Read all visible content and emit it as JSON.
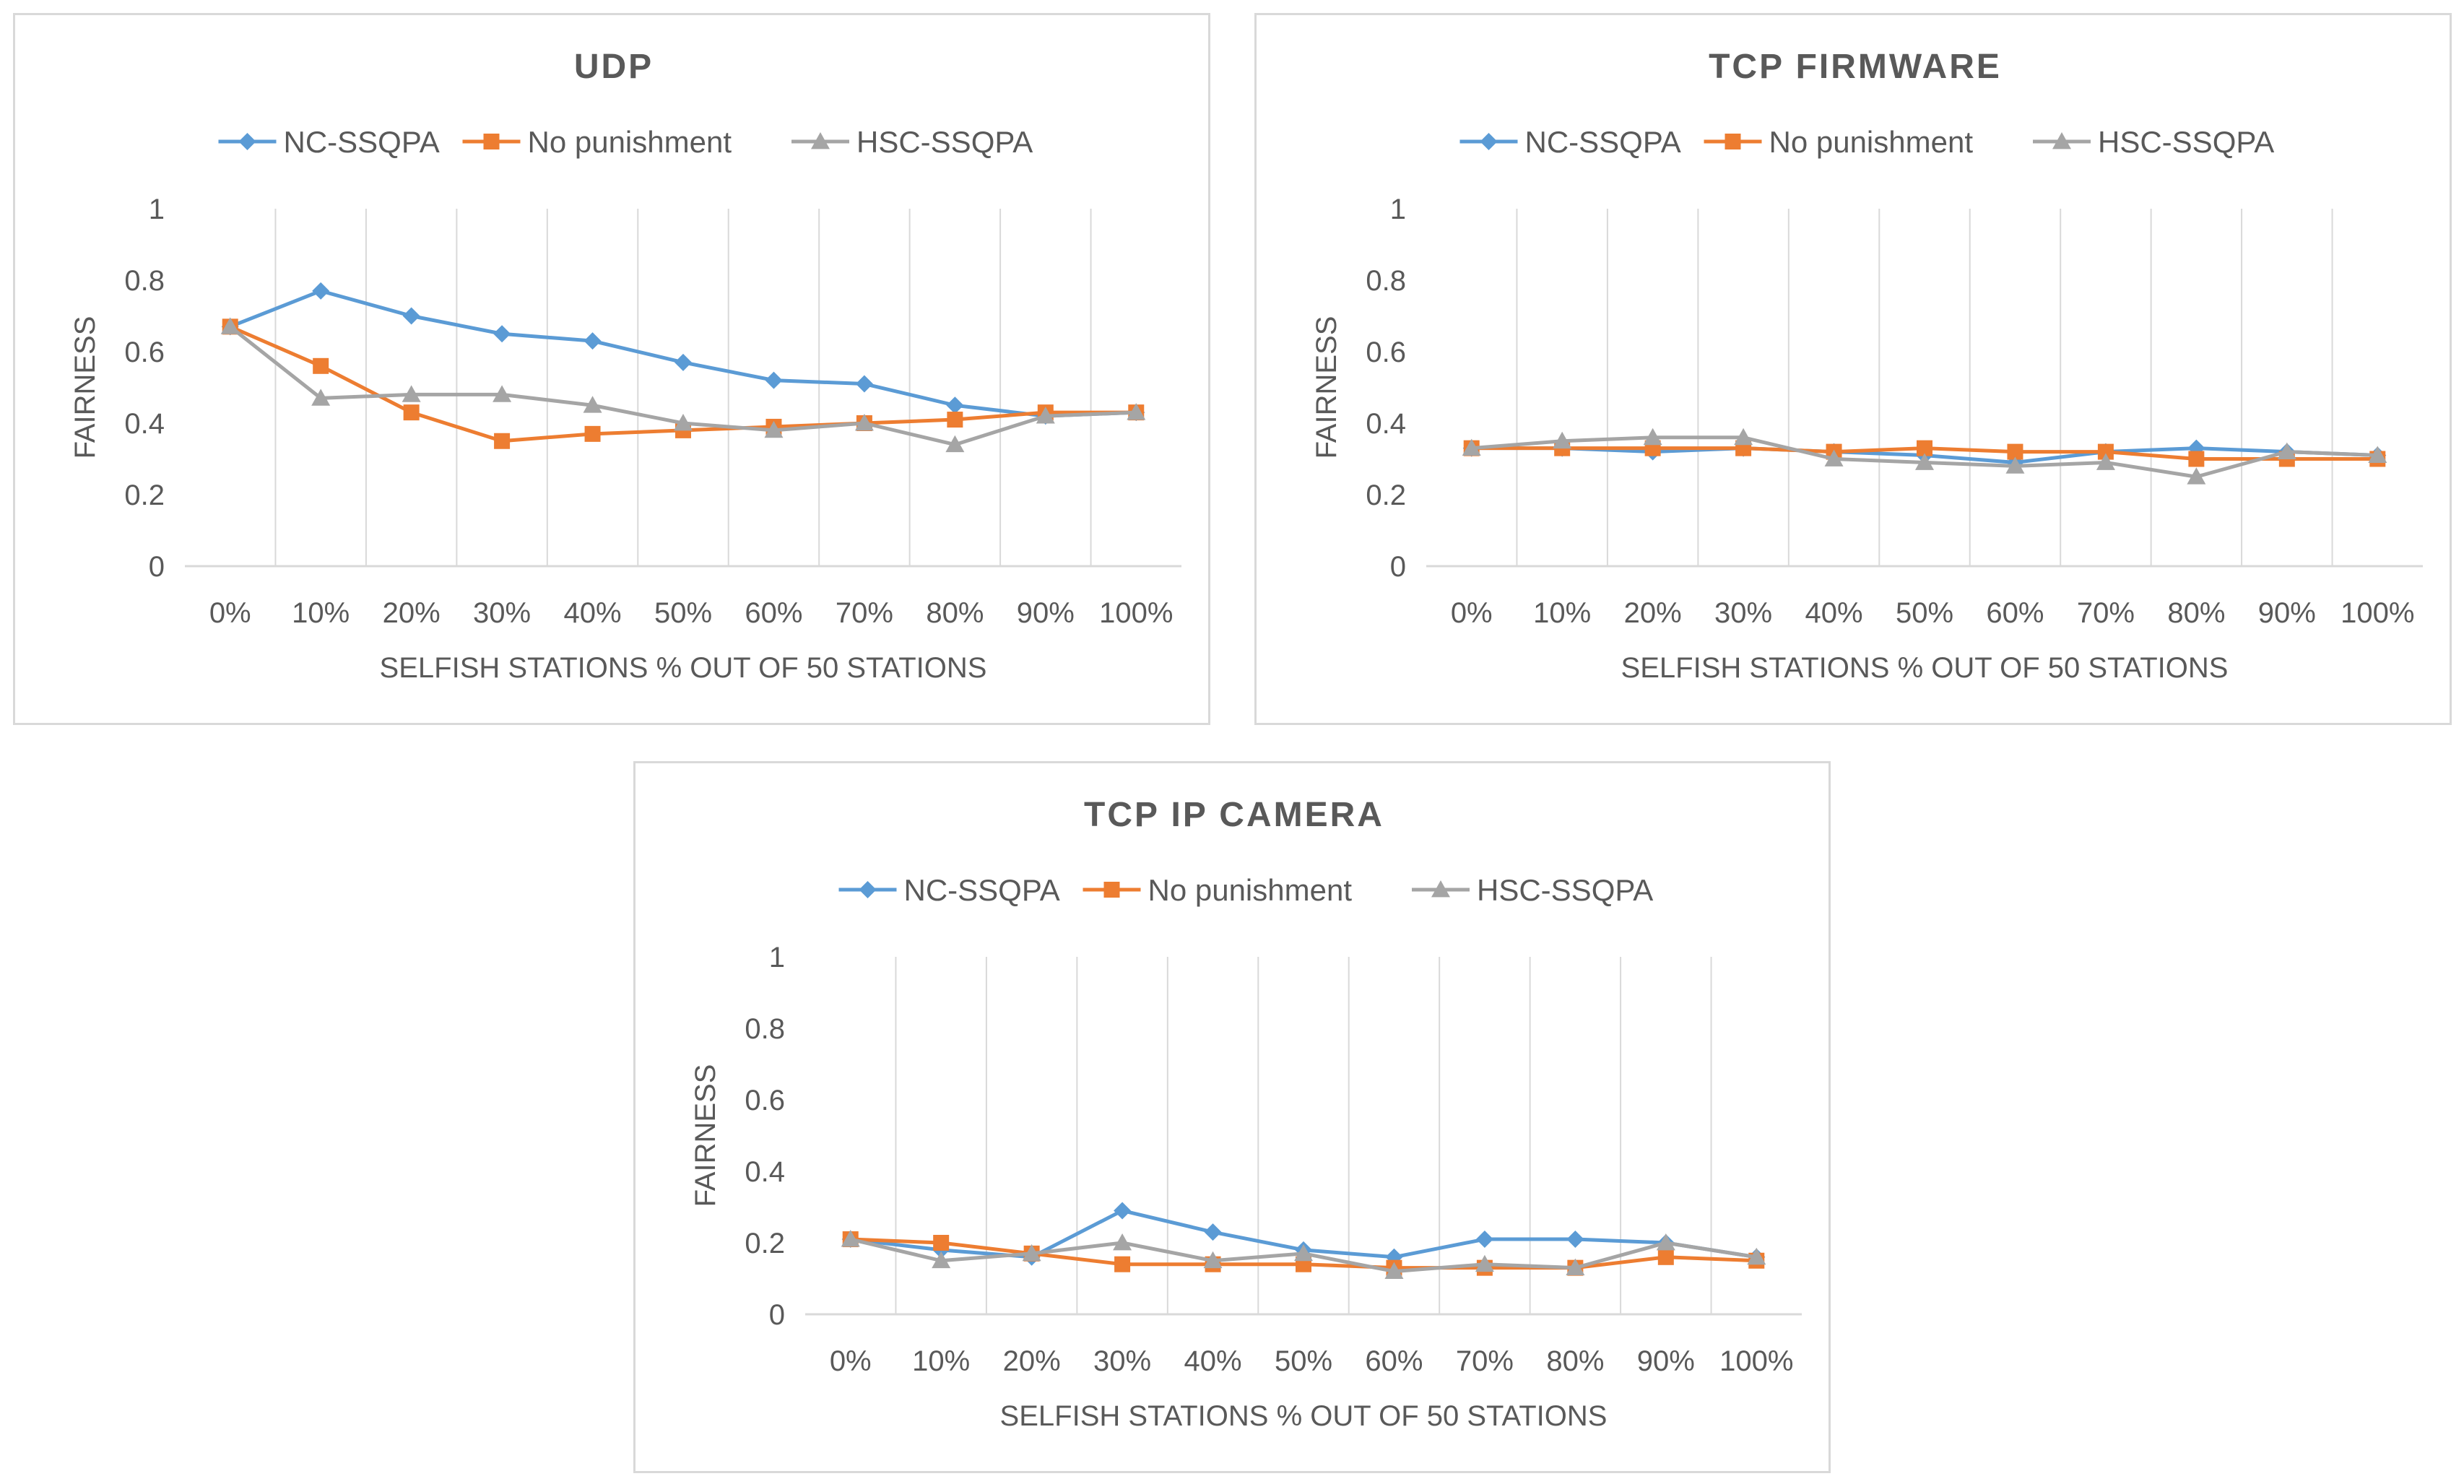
{
  "colors": {
    "nc": "#5b9bd5",
    "np": "#ed7d31",
    "hsc": "#a5a5a5",
    "grid": "#d9d9d9",
    "text": "#595959"
  },
  "chart_data": [
    {
      "type": "line",
      "title": "UDP",
      "xlabel": "SELFISH STATIONS % OUT OF 50 STATIONS",
      "ylabel": "FAIRNESS",
      "categories": [
        "0%",
        "10%",
        "20%",
        "30%",
        "40%",
        "50%",
        "60%",
        "70%",
        "80%",
        "90%",
        "100%"
      ],
      "yticks": [
        "0",
        "0.2",
        "0.4",
        "0.6",
        "0.8",
        "1"
      ],
      "ylim": [
        0,
        1
      ],
      "legend_position": "top",
      "series": [
        {
          "name": "NC-SSQPA",
          "marker": "diamond",
          "values": [
            0.67,
            0.77,
            0.7,
            0.65,
            0.63,
            0.57,
            0.52,
            0.51,
            0.45,
            0.42,
            0.43
          ]
        },
        {
          "name": "No punishment",
          "marker": "square",
          "values": [
            0.67,
            0.56,
            0.43,
            0.35,
            0.37,
            0.38,
            0.39,
            0.4,
            0.41,
            0.43,
            0.43
          ]
        },
        {
          "name": "HSC-SSQPA",
          "marker": "triangle",
          "values": [
            0.67,
            0.47,
            0.48,
            0.48,
            0.45,
            0.4,
            0.38,
            0.4,
            0.34,
            0.42,
            0.43
          ]
        }
      ]
    },
    {
      "type": "line",
      "title": "TCP FIRMWARE",
      "xlabel": "SELFISH STATIONS % OUT OF 50 STATIONS",
      "ylabel": "FAIRNESS",
      "categories": [
        "0%",
        "10%",
        "20%",
        "30%",
        "40%",
        "50%",
        "60%",
        "70%",
        "80%",
        "90%",
        "100%"
      ],
      "yticks": [
        "0",
        "0.2",
        "0.4",
        "0.6",
        "0.8",
        "1"
      ],
      "ylim": [
        0,
        1
      ],
      "legend_position": "top",
      "series": [
        {
          "name": "NC-SSQPA",
          "marker": "diamond",
          "values": [
            0.33,
            0.33,
            0.32,
            0.33,
            0.32,
            0.31,
            0.29,
            0.32,
            0.33,
            0.32,
            0.31
          ]
        },
        {
          "name": "No punishment",
          "marker": "square",
          "values": [
            0.33,
            0.33,
            0.33,
            0.33,
            0.32,
            0.33,
            0.32,
            0.32,
            0.3,
            0.3,
            0.3
          ]
        },
        {
          "name": "HSC-SSQPA",
          "marker": "triangle",
          "values": [
            0.33,
            0.35,
            0.36,
            0.36,
            0.3,
            0.29,
            0.28,
            0.29,
            0.25,
            0.32,
            0.31
          ]
        }
      ]
    },
    {
      "type": "line",
      "title": "TCP IP CAMERA",
      "xlabel": "SELFISH STATIONS % OUT OF 50 STATIONS",
      "ylabel": "FAIRNESS",
      "categories": [
        "0%",
        "10%",
        "20%",
        "30%",
        "40%",
        "50%",
        "60%",
        "70%",
        "80%",
        "90%",
        "100%"
      ],
      "yticks": [
        "0",
        "0.2",
        "0.4",
        "0.6",
        "0.8",
        "1"
      ],
      "ylim": [
        0,
        1
      ],
      "legend_position": "top",
      "series": [
        {
          "name": "NC-SSQPA",
          "marker": "diamond",
          "values": [
            0.21,
            0.18,
            0.16,
            0.29,
            0.23,
            0.18,
            0.16,
            0.21,
            0.21,
            0.2,
            0.16
          ]
        },
        {
          "name": "No punishment",
          "marker": "square",
          "values": [
            0.21,
            0.2,
            0.17,
            0.14,
            0.14,
            0.14,
            0.13,
            0.13,
            0.13,
            0.16,
            0.15
          ]
        },
        {
          "name": "HSC-SSQPA",
          "marker": "triangle",
          "values": [
            0.21,
            0.15,
            0.17,
            0.2,
            0.15,
            0.17,
            0.12,
            0.14,
            0.13,
            0.2,
            0.16
          ]
        }
      ]
    }
  ]
}
